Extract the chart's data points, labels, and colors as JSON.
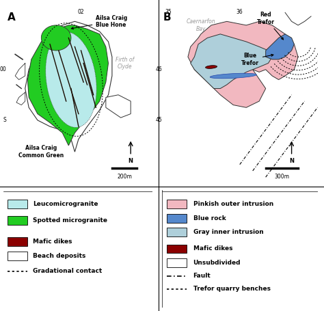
{
  "colors": {
    "leucomicrogranite": "#b8eaea",
    "spotted_microgranite": "#22cc22",
    "mafic_dikes_A": "#5a0a0a",
    "beach_deposits": "#ffffff",
    "pinkish_outer": "#f2b8c0",
    "blue_rock": "#5588cc",
    "gray_inner": "#aecfda",
    "mafic_dikes_B": "#8b0000",
    "map_bg": "#e8e8e8",
    "grid_color": "#cccccc",
    "text_gray": "#999999",
    "outline": "#333333"
  },
  "panel_A_label": "A",
  "panel_B_label": "B",
  "firth_of_clyde_text": "Firth of\nClyde",
  "caernarfon_bay_text": "Caernarfon\nBay",
  "ailsa_craig_blue_hone": "Ailsa Craig\nBlue Hone",
  "ailsa_craig_common_green": "Ailsa Craig\nCommon Green",
  "red_trefor": "Red\nTrefor",
  "blue_trefor": "Blue\nTrefor",
  "scale_A": "200m",
  "scale_B": "300m",
  "legend_left": [
    {
      "color": "#b8eaea",
      "label": "Leucomicrogranite",
      "type": "patch"
    },
    {
      "color": "#22cc22",
      "label": "Spotted microgranite",
      "type": "patch"
    },
    {
      "color": "#8b0000",
      "label": "Mafic dikes",
      "type": "patch"
    },
    {
      "color": "#ffffff",
      "label": "Beach deposits",
      "type": "patch"
    },
    {
      "label": "Gradational contact",
      "type": "dotted"
    }
  ],
  "legend_right": [
    {
      "color": "#f2b8c0",
      "label": "Pinkish outer intrusion",
      "type": "patch"
    },
    {
      "color": "#5588cc",
      "label": "Blue rock",
      "type": "patch"
    },
    {
      "color": "#aecfda",
      "label": "Gray inner intrusion",
      "type": "patch"
    },
    {
      "color": "#8b0000",
      "label": "Mafic dikes",
      "type": "patch"
    },
    {
      "color": "#ffffff",
      "label": "Unsubdivided",
      "type": "patch"
    },
    {
      "label": "Fault",
      "type": "dashdot"
    },
    {
      "label": "Trefor quarry benches",
      "type": "dotted"
    }
  ]
}
